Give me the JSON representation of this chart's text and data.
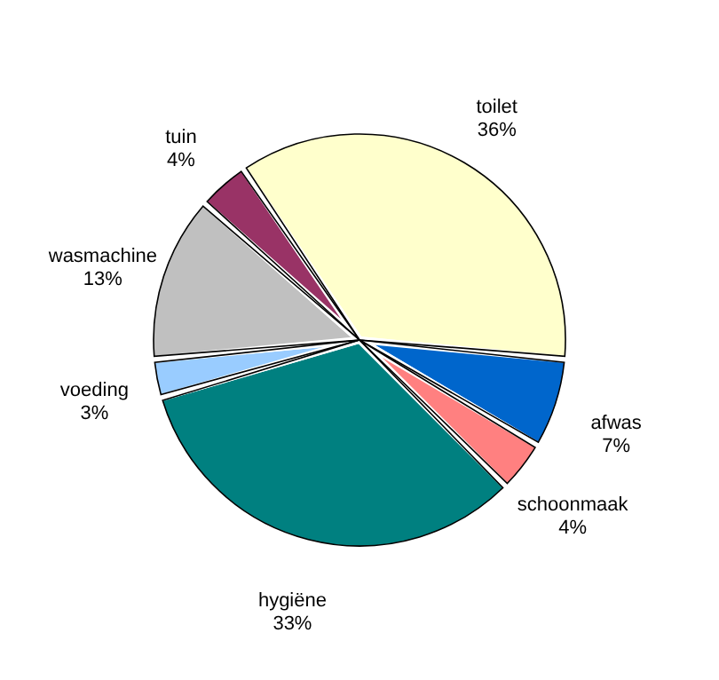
{
  "chart_data": {
    "type": "pie",
    "categories": [
      "toilet",
      "afwas",
      "schoonmaak",
      "hygiëne",
      "voeding",
      "wasmachine",
      "tuin"
    ],
    "values": [
      36,
      7,
      4,
      33,
      3,
      13,
      4
    ],
    "value_labels": [
      "36%",
      "7%",
      "4%",
      "33%",
      "3%",
      "13%",
      "4%"
    ],
    "colors": [
      "#ffffcc",
      "#0066cc",
      "#ff8080",
      "#008080",
      "#99ccff",
      "#c0c0c0",
      "#993366"
    ],
    "legend": false
  }
}
